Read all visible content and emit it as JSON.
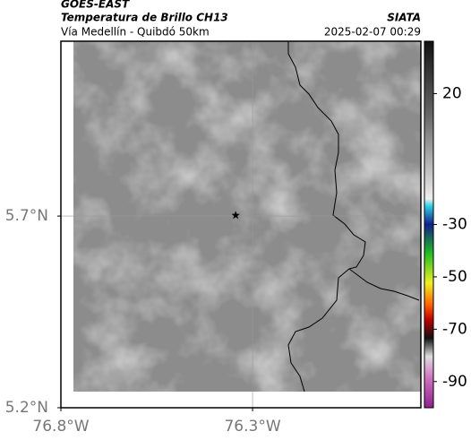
{
  "chart_data": {
    "type": "map",
    "title": "GOES-EAST",
    "subtitle": "Temperatura de Brillo CH13",
    "region": "Vía Medellín - Quibdó 50km",
    "source": "SIATA",
    "datetime": "2025-02-07 00:29",
    "xlim": [
      -76.8,
      -75.861
    ],
    "ylim": [
      5.2,
      6.156
    ],
    "xticks": [
      {
        "value": -76.8,
        "label": "76.8°W"
      },
      {
        "value": -76.3,
        "label": "76.3°W"
      }
    ],
    "yticks": [
      {
        "value": 5.2,
        "label": "5.2°N"
      },
      {
        "value": 5.7,
        "label": "5.7°N"
      }
    ],
    "grid": true,
    "marker": {
      "lon": -76.344,
      "lat": 5.702
    },
    "clim": [
      -100,
      40
    ],
    "cticks": [
      20,
      -30,
      -50,
      -70,
      -90
    ]
  }
}
